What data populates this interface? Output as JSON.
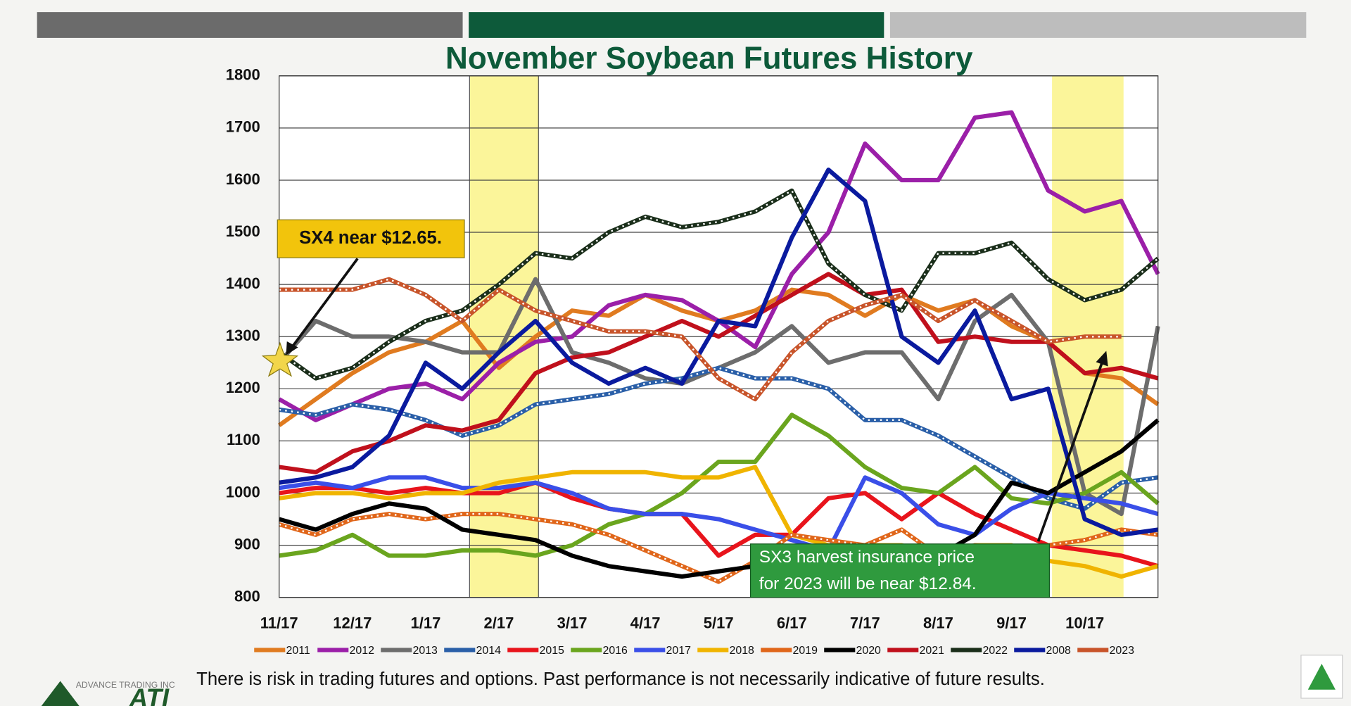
{
  "chart_data": {
    "type": "line",
    "title": "November Soybean Futures History",
    "categories": [
      "11/17",
      null,
      "12/17",
      null,
      "1/17",
      null,
      "2/17",
      null,
      "3/17",
      null,
      "4/17",
      null,
      "5/17",
      null,
      "6/17",
      null,
      "7/17",
      null,
      "8/17",
      null,
      "9/17",
      null,
      "10/17",
      null,
      null
    ],
    "ylim": [
      800,
      1800
    ],
    "yticks": [
      800,
      900,
      1000,
      1100,
      1200,
      1300,
      1400,
      1500,
      1600,
      1700,
      1800
    ],
    "grid": true,
    "series": [
      {
        "name": "2011",
        "color": "#e07b20",
        "dotted": false,
        "values": [
          1130,
          1180,
          1230,
          1270,
          1290,
          1330,
          1240,
          1300,
          1350,
          1340,
          1380,
          1350,
          1330,
          1350,
          1390,
          1380,
          1340,
          1380,
          1350,
          1370,
          1320,
          1290,
          1230,
          1220,
          1170
        ]
      },
      {
        "name": "2012",
        "color": "#9b1fa8",
        "dotted": false,
        "values": [
          1180,
          1140,
          1170,
          1200,
          1210,
          1180,
          1250,
          1290,
          1300,
          1360,
          1380,
          1370,
          1330,
          1280,
          1420,
          1500,
          1670,
          1600,
          1600,
          1720,
          1730,
          1580,
          1540,
          1560,
          1420
        ]
      },
      {
        "name": "2013",
        "color": "#6d6d6d",
        "dotted": false,
        "values": [
          1250,
          1330,
          1300,
          1300,
          1290,
          1270,
          1270,
          1410,
          1270,
          1250,
          1220,
          1210,
          1240,
          1270,
          1320,
          1250,
          1270,
          1270,
          1180,
          1330,
          1380,
          1290,
          1000,
          960,
          1320
        ]
      },
      {
        "name": "2014",
        "color": "#2a5fa8",
        "dotted": true,
        "values": [
          1160,
          1150,
          1170,
          1160,
          1140,
          1110,
          1130,
          1170,
          1180,
          1190,
          1210,
          1220,
          1240,
          1220,
          1220,
          1200,
          1140,
          1140,
          1110,
          1070,
          1030,
          990,
          970,
          1020,
          1030
        ]
      },
      {
        "name": "2015",
        "color": "#e8141c",
        "dotted": false,
        "values": [
          1000,
          1010,
          1010,
          1000,
          1010,
          1000,
          1000,
          1020,
          990,
          970,
          960,
          960,
          880,
          920,
          920,
          990,
          1000,
          950,
          1000,
          960,
          930,
          900,
          890,
          880,
          860
        ]
      },
      {
        "name": "2016",
        "color": "#6aa51e",
        "dotted": false,
        "values": [
          880,
          890,
          920,
          880,
          880,
          890,
          890,
          880,
          900,
          940,
          960,
          1000,
          1060,
          1060,
          1150,
          1110,
          1050,
          1010,
          1000,
          1050,
          990,
          980,
          1000,
          1040,
          980
        ]
      },
      {
        "name": "2017",
        "color": "#3a4fe8",
        "dotted": false,
        "values": [
          1010,
          1020,
          1010,
          1030,
          1030,
          1010,
          1010,
          1020,
          1000,
          970,
          960,
          960,
          950,
          930,
          910,
          890,
          1030,
          1000,
          940,
          920,
          970,
          1000,
          990,
          980,
          960
        ]
      },
      {
        "name": "2018",
        "color": "#f0b400",
        "dotted": false,
        "values": [
          990,
          1000,
          1000,
          990,
          1000,
          1000,
          1020,
          1030,
          1040,
          1040,
          1040,
          1030,
          1030,
          1050,
          920,
          900,
          900,
          900,
          880,
          900,
          900,
          870,
          860,
          840,
          860
        ]
      },
      {
        "name": "2019",
        "color": "#e0661a",
        "dotted": true,
        "values": [
          940,
          920,
          950,
          960,
          950,
          960,
          960,
          950,
          940,
          920,
          890,
          860,
          830,
          870,
          920,
          910,
          900,
          930,
          880,
          900,
          890,
          900,
          910,
          930,
          920
        ]
      },
      {
        "name": "2020",
        "color": "#000000",
        "dotted": false,
        "values": [
          950,
          930,
          960,
          980,
          970,
          930,
          920,
          910,
          880,
          860,
          850,
          840,
          850,
          860,
          870,
          860,
          870,
          860,
          880,
          920,
          1020,
          1000,
          1040,
          1080,
          1140
        ]
      },
      {
        "name": "2021",
        "color": "#c0101c",
        "dotted": false,
        "values": [
          1050,
          1040,
          1080,
          1100,
          1130,
          1120,
          1140,
          1230,
          1260,
          1270,
          1300,
          1330,
          1300,
          1340,
          1380,
          1420,
          1380,
          1390,
          1290,
          1300,
          1290,
          1290,
          1230,
          1240,
          1220
        ]
      },
      {
        "name": "2022",
        "color": "#1a2e1a",
        "dotted": true,
        "values": [
          1270,
          1220,
          1240,
          1290,
          1330,
          1350,
          1400,
          1460,
          1450,
          1500,
          1530,
          1510,
          1520,
          1540,
          1580,
          1440,
          1380,
          1350,
          1460,
          1460,
          1480,
          1410,
          1370,
          1390,
          1450
        ]
      },
      {
        "name": "2008",
        "color": "#0a1a9e",
        "dotted": false,
        "values": [
          1020,
          1030,
          1050,
          1110,
          1250,
          1200,
          1270,
          1330,
          1250,
          1210,
          1240,
          1210,
          1330,
          1320,
          1490,
          1620,
          1560,
          1300,
          1250,
          1350,
          1180,
          1200,
          950,
          920,
          930
        ]
      },
      {
        "name": "2023",
        "color": "#c8542a",
        "dotted": true,
        "values": [
          1390,
          1390,
          1390,
          1410,
          1380,
          1330,
          1390,
          1350,
          1330,
          1310,
          1310,
          1300,
          1220,
          1180,
          1270,
          1330,
          1360,
          1380,
          1330,
          1370,
          1330,
          1290,
          1300,
          1300,
          null
        ]
      }
    ],
    "annotations": [
      {
        "text": "SX4 near $12.65."
      },
      {
        "lines": [
          "SX3 harvest insurance price",
          "for 2023 will be near $12.84."
        ]
      }
    ]
  },
  "footer": {
    "disclaimer": "There is risk in trading futures and options.  Past performance is not necessarily indicative of future results.",
    "logo_tagline": "ADVANCE TRADING INC",
    "logo": "ATI"
  }
}
